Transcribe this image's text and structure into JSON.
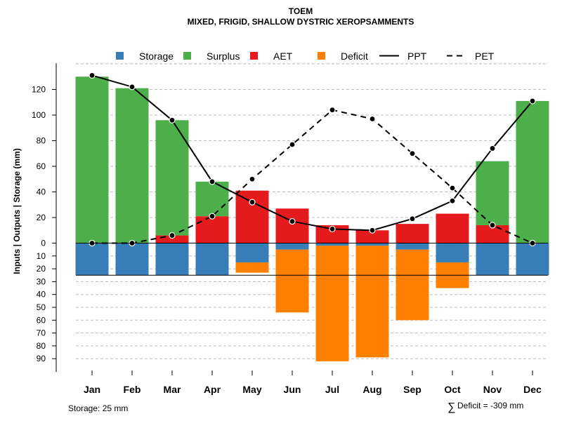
{
  "chart_data": {
    "type": "bar",
    "title": "TOEM",
    "subtitle": "MIXED, FRIGID, SHALLOW DYSTRIC XEROPSAMMENTS",
    "ylabel": "Inputs | Outputs | Storage    (mm)",
    "categories": [
      "Jan",
      "Feb",
      "Mar",
      "Apr",
      "May",
      "Jun",
      "Jul",
      "Aug",
      "Sep",
      "Oct",
      "Nov",
      "Dec"
    ],
    "ylim_upper": [
      0,
      130
    ],
    "ylim_lower": [
      0,
      90
    ],
    "upper_ticks": [
      "0",
      "20",
      "40",
      "60",
      "80",
      "100",
      "120"
    ],
    "lower_ticks": [
      "10",
      "20",
      "30",
      "40",
      "50",
      "60",
      "70",
      "80",
      "90"
    ],
    "legend": [
      "Storage",
      "Surplus",
      "AET",
      "Deficit",
      "PPT",
      "PET"
    ],
    "colors": {
      "storage": "#377eb8",
      "surplus": "#4daf4a",
      "aet": "#e41a1c",
      "deficit": "#ff7f00",
      "line": "#000000"
    },
    "series": [
      {
        "name": "Storage",
        "values": [
          25,
          25,
          25,
          25,
          15,
          5,
          2,
          2,
          5,
          15,
          25,
          25
        ]
      },
      {
        "name": "Surplus",
        "values": [
          130,
          121,
          90,
          27,
          0,
          0,
          0,
          0,
          0,
          0,
          50,
          111
        ]
      },
      {
        "name": "AET",
        "values": [
          0,
          0,
          6,
          21,
          41,
          27,
          14,
          10,
          15,
          23,
          14,
          0
        ]
      },
      {
        "name": "Deficit",
        "values": [
          0,
          0,
          0,
          0,
          8,
          49,
          90,
          87,
          55,
          20,
          0,
          0
        ]
      },
      {
        "name": "PPT",
        "values": [
          131,
          122,
          96,
          48,
          32,
          17,
          11,
          10,
          19,
          33,
          74,
          111
        ]
      },
      {
        "name": "PET",
        "values": [
          0,
          0,
          6,
          21,
          50,
          77,
          104,
          97,
          70,
          43,
          14,
          0
        ]
      }
    ],
    "storage_capacity_mm": 25,
    "notes": {
      "storage": "Storage: 25 mm",
      "deficit_symbol": "∑",
      "deficit": "Deficit = -309 mm"
    }
  }
}
